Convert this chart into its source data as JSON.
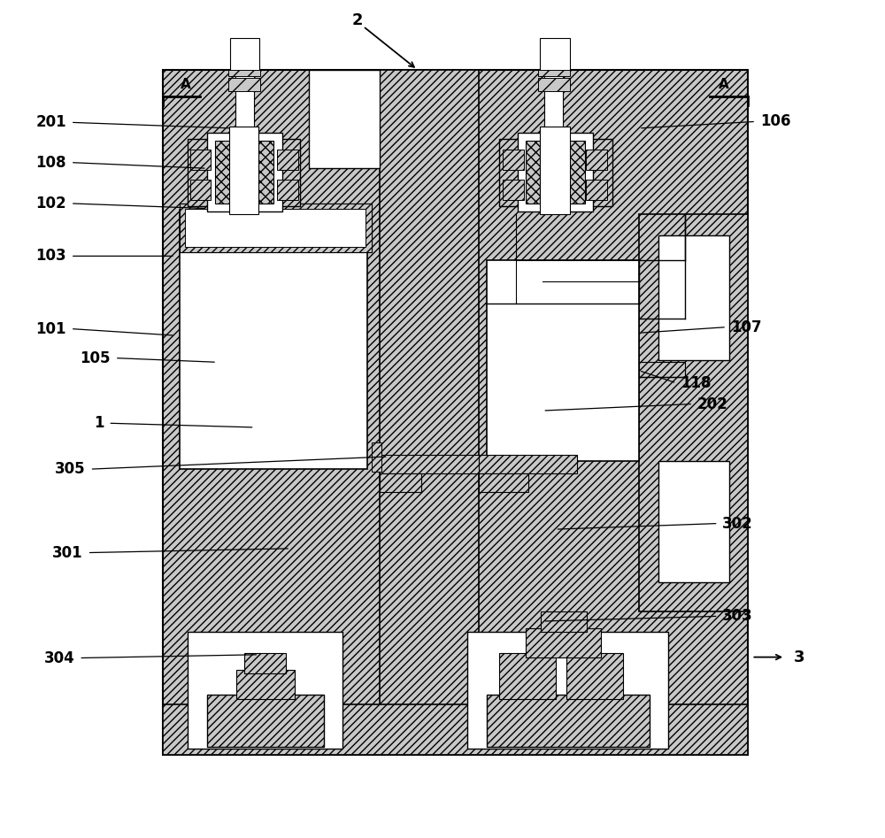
{
  "fig_width": 10.0,
  "fig_height": 9.47,
  "bg_color": "#ffffff",
  "hc": "#c8c8c8",
  "hp": "////",
  "lc": "#000000",
  "annotation_fontsize": 12,
  "label_entries": [
    [
      "201",
      [
        0.248,
        0.848
      ],
      [
        0.055,
        0.855
      ],
      "right"
    ],
    [
      "106",
      [
        0.735,
        0.848
      ],
      [
        0.875,
        0.856
      ],
      "left"
    ],
    [
      "108",
      [
        0.218,
        0.8
      ],
      [
        0.055,
        0.807
      ],
      "right"
    ],
    [
      "102",
      [
        0.218,
        0.752
      ],
      [
        0.055,
        0.758
      ],
      "right"
    ],
    [
      "103",
      [
        0.18,
        0.695
      ],
      [
        0.055,
        0.695
      ],
      "right"
    ],
    [
      "101",
      [
        0.18,
        0.6
      ],
      [
        0.055,
        0.608
      ],
      "right"
    ],
    [
      "107",
      [
        0.735,
        0.603
      ],
      [
        0.84,
        0.61
      ],
      "left"
    ],
    [
      "118",
      [
        0.735,
        0.558
      ],
      [
        0.78,
        0.543
      ],
      "left"
    ],
    [
      "105",
      [
        0.23,
        0.568
      ],
      [
        0.108,
        0.573
      ],
      "right"
    ],
    [
      "202",
      [
        0.62,
        0.51
      ],
      [
        0.8,
        0.518
      ],
      "left"
    ],
    [
      "1",
      [
        0.275,
        0.49
      ],
      [
        0.1,
        0.495
      ],
      "right"
    ],
    [
      "305",
      [
        0.435,
        0.455
      ],
      [
        0.078,
        0.44
      ],
      "right"
    ],
    [
      "302",
      [
        0.635,
        0.368
      ],
      [
        0.83,
        0.375
      ],
      "left"
    ],
    [
      "301",
      [
        0.318,
        0.345
      ],
      [
        0.075,
        0.34
      ],
      "right"
    ],
    [
      "303",
      [
        0.62,
        0.258
      ],
      [
        0.83,
        0.264
      ],
      "left"
    ],
    [
      "304",
      [
        0.28,
        0.218
      ],
      [
        0.065,
        0.214
      ],
      "right"
    ]
  ]
}
